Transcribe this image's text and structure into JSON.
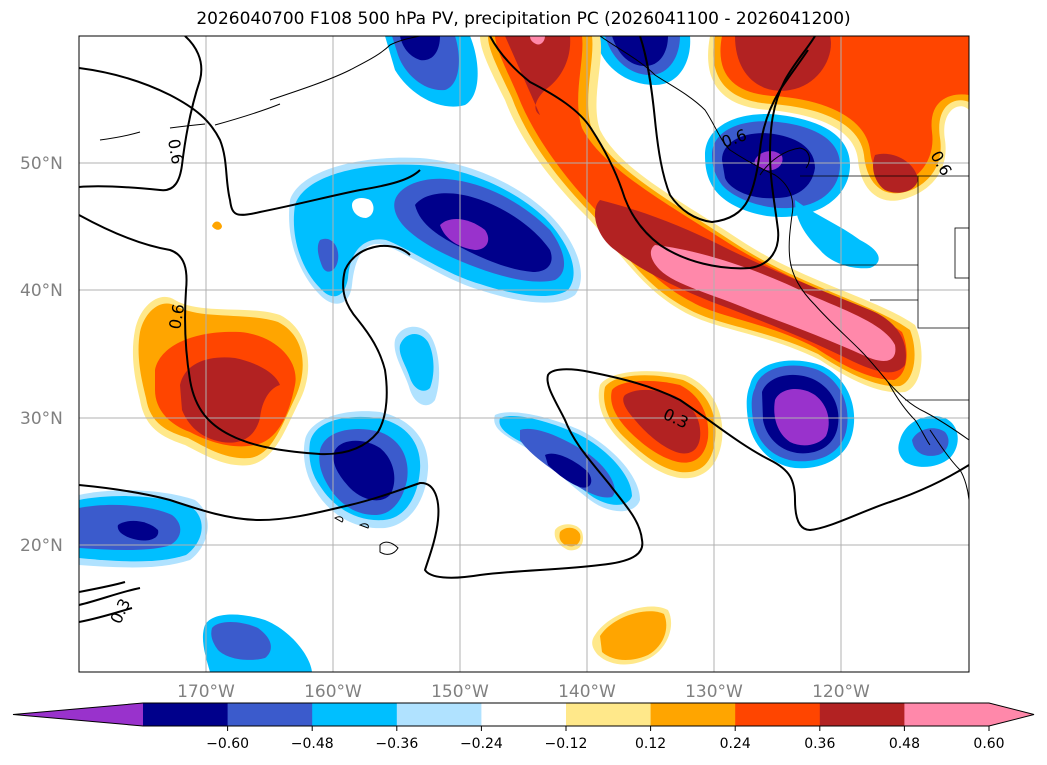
{
  "title": "2026040700 F108 500 hPa PV, precipitation PC (2026041100 - 2026041200)",
  "map": {
    "lat_labels": [
      "50°N",
      "40°N",
      "30°N",
      "20°N"
    ],
    "lon_labels": [
      "170°W",
      "160°W",
      "150°W",
      "140°W",
      "130°W",
      "120°W"
    ],
    "contour_labels": [
      "0.6",
      "0.6",
      "0.3",
      "0.3",
      "0.6",
      "0.6"
    ]
  },
  "colorbar": {
    "ticks": [
      "−0.60",
      "−0.48",
      "−0.36",
      "−0.24",
      "−0.12",
      "0.12",
      "0.24",
      "0.36",
      "0.48",
      "0.60"
    ],
    "colors": [
      "#9932cc",
      "#00008b",
      "#3b5bcc",
      "#00bfff",
      "#b0e2ff",
      "#ffffff",
      "#ffe88a",
      "#ffa500",
      "#ff4500",
      "#b22222",
      "#ff88aa",
      "#ff88aa"
    ]
  },
  "colors": {
    "purple": "#9932cc",
    "navy": "#00008b",
    "blue": "#3b5bcc",
    "sky": "#00bfff",
    "lightblue": "#b0e2ff",
    "yellow": "#ffe88a",
    "orange": "#ffa500",
    "redorange": "#ff4500",
    "darkred": "#b22222",
    "pink": "#ff88aa",
    "grid": "#b0b0b0"
  }
}
